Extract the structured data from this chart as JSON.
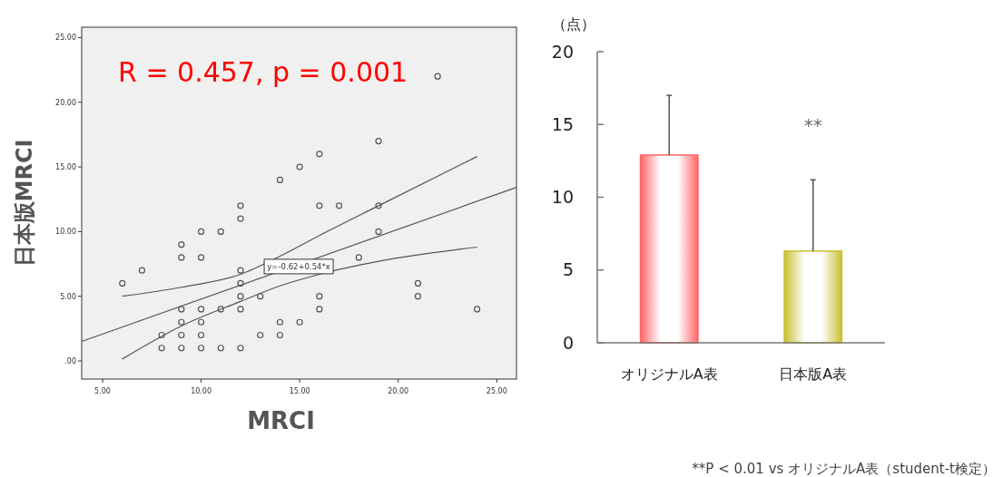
{
  "chart_data": [
    {
      "type": "scatter",
      "xlabel": "MRCI",
      "ylabel": "日本版MRCI",
      "xlim": [
        3.94,
        26
      ],
      "ylim": [
        -1.4,
        25.8
      ],
      "xticks": [
        {
          "value": 5,
          "label": "5.00"
        },
        {
          "value": 10,
          "label": "10.00"
        },
        {
          "value": 15,
          "label": "15.00"
        },
        {
          "value": 20,
          "label": "20.00"
        },
        {
          "value": 25,
          "label": "25.00"
        }
      ],
      "yticks": [
        {
          "value": 0,
          "label": ".00"
        },
        {
          "value": 5,
          "label": "5.00"
        },
        {
          "value": 10,
          "label": "10.00"
        },
        {
          "value": 15,
          "label": "15.00"
        },
        {
          "value": 20,
          "label": "20.00"
        },
        {
          "value": 25,
          "label": "25.00"
        }
      ],
      "grid": false,
      "series": [
        {
          "type": "scatter",
          "marker": "circle",
          "color": "#555555",
          "x": [
            6,
            7,
            8,
            8,
            9,
            9,
            9,
            9,
            9,
            9,
            10,
            10,
            10,
            10,
            10,
            10,
            11,
            11,
            11,
            12,
            12,
            12,
            12,
            12,
            12,
            12,
            13,
            13,
            14,
            14,
            14,
            15,
            15,
            16,
            16,
            16,
            16,
            17,
            18,
            19,
            19,
            19,
            21,
            21,
            22,
            24
          ],
          "values": [
            6,
            7,
            2,
            1,
            9,
            8,
            4,
            3,
            2,
            1,
            10,
            8,
            4,
            3,
            2,
            1,
            10,
            4,
            1,
            12,
            11,
            7,
            6,
            5,
            4,
            1,
            5,
            2,
            14,
            3,
            2,
            15,
            3,
            16,
            12,
            5,
            4,
            12,
            8,
            17,
            12,
            10,
            6,
            5,
            22,
            4
          ]
        },
        {
          "type": "line",
          "color": "#555555",
          "x": [
            3.94,
            26
          ],
          "values": [
            1.51,
            13.42
          ]
        },
        {
          "type": "line",
          "color": "#555555",
          "x": [
            6,
            9,
            12,
            14,
            16,
            19,
            24
          ],
          "values": [
            5.0,
            5.7,
            6.7,
            8.1,
            9.7,
            12.0,
            15.8
          ]
        },
        {
          "type": "line",
          "color": "#555555",
          "x": [
            6,
            9,
            12,
            14,
            16,
            19,
            24
          ],
          "values": [
            0.15,
            2.7,
            4.6,
            5.8,
            6.7,
            7.7,
            8.8
          ]
        }
      ],
      "annotations": [
        {
          "text": "y=-0.62+0.54*x",
          "x": 14.95,
          "y": 7.3
        },
        "R = 0.457, p = 0.001"
      ]
    },
    {
      "type": "bar",
      "ylabel": "（点）",
      "categories": [
        "オリジナルA表",
        "日本版A表"
      ],
      "values": [
        12.9,
        6.3
      ],
      "colors": [
        "#ff6666",
        "#c8c032"
      ],
      "errors": [
        [
          12.9,
          17.0
        ],
        [
          6.3,
          11.2
        ]
      ],
      "ylim": [
        0,
        20
      ],
      "yticks": [
        0,
        5,
        10,
        15,
        20
      ],
      "grid": false,
      "annotations": [
        "**",
        "**P < 0.01 vs オリジナルA表（student-t検定）"
      ]
    }
  ]
}
